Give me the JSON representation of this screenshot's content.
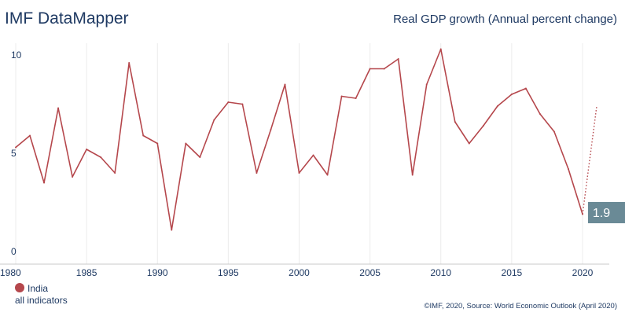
{
  "header": {
    "brand": "IMF DataMapper",
    "indicator": "Real GDP growth (Annual percent change)"
  },
  "legend": {
    "country": "India",
    "sub": "all indicators",
    "color": "#b5474c"
  },
  "footer": {
    "credit": "©IMF, 2020, Source: World Economic Outlook (April 2020)"
  },
  "chart_data": {
    "type": "line",
    "xlim": [
      1980,
      2021
    ],
    "ylim": [
      0,
      10.5
    ],
    "y_ticks": [
      0,
      5,
      10
    ],
    "x_ticks": [
      1980,
      1985,
      1990,
      1995,
      2000,
      2005,
      2010,
      2015,
      2020
    ],
    "grid": "vertical",
    "line_color": "#b5474c",
    "label_color": "#6a8a96",
    "series": [
      {
        "name": "India",
        "x": [
          1980,
          1981,
          1982,
          1983,
          1984,
          1985,
          1986,
          1987,
          1988,
          1989,
          1990,
          1991,
          1992,
          1993,
          1994,
          1995,
          1996,
          1997,
          1998,
          1999,
          2000,
          2001,
          2002,
          2003,
          2004,
          2005,
          2006,
          2007,
          2008,
          2009,
          2010,
          2011,
          2012,
          2013,
          2014,
          2015,
          2016,
          2017,
          2018,
          2019,
          2020
        ],
        "y": [
          5.3,
          5.9,
          3.5,
          7.3,
          3.8,
          5.2,
          4.8,
          4.0,
          9.6,
          5.9,
          5.5,
          1.1,
          5.5,
          4.8,
          6.7,
          7.6,
          7.5,
          4.0,
          6.2,
          8.5,
          4.0,
          4.9,
          3.9,
          7.9,
          7.8,
          9.3,
          9.3,
          9.8,
          3.9,
          8.5,
          10.3,
          6.6,
          5.5,
          6.4,
          7.4,
          8.0,
          8.3,
          7.0,
          6.1,
          4.2,
          1.9
        ]
      },
      {
        "name": "projection",
        "style": "dotted",
        "x": [
          2020,
          2021
        ],
        "y": [
          1.9,
          7.4
        ]
      }
    ],
    "end_label": "1.9"
  }
}
